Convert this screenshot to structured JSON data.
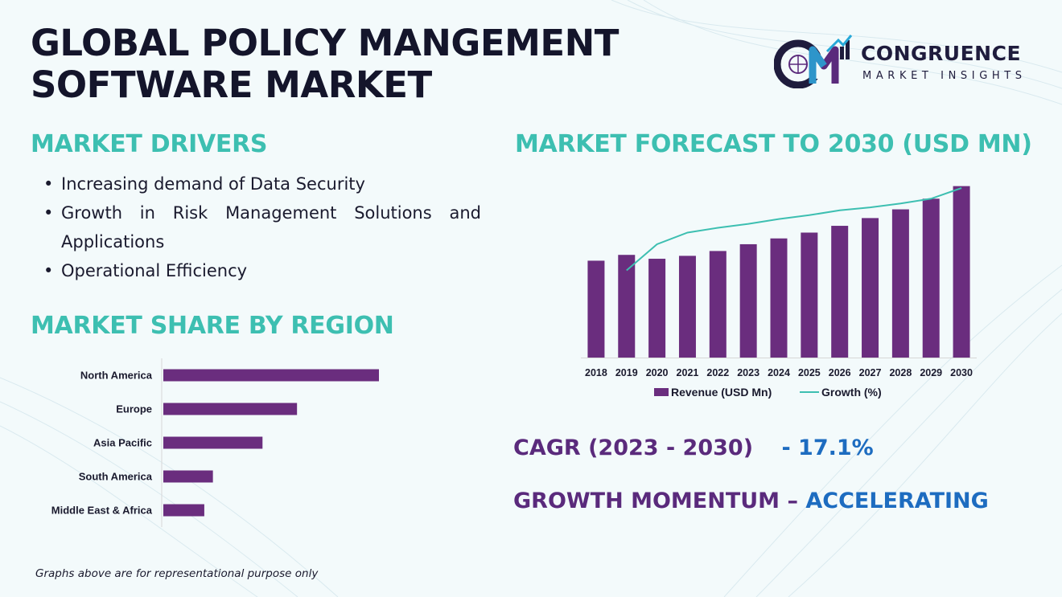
{
  "header": {
    "title_line1": "GLOBAL POLICY MANGEMENT",
    "title_line2": "SOFTWARE MARKET"
  },
  "logo": {
    "name": "CONGRUENCE",
    "tagline": "MARKET INSIGHTS"
  },
  "drivers": {
    "heading": "MARKET DRIVERS",
    "items": [
      "Increasing demand of Data Security",
      "Growth in Risk Management Solutions and Applications",
      "Operational Efficiency"
    ]
  },
  "region": {
    "heading": "MARKET SHARE BY REGION"
  },
  "forecast": {
    "heading": "MARKET FORECAST TO 2030 (USD MN)"
  },
  "cagr": {
    "label": "CAGR (2023 - 2030)",
    "value": "- 17.1%"
  },
  "momentum": {
    "label": "GROWTH MOMENTUM –",
    "value": "ACCELERATING"
  },
  "footnote": "Graphs above are for representational purpose only",
  "colors": {
    "bar": "#6a2d7e",
    "line": "#3dbfb1",
    "heading": "#3dbfb1",
    "purple_text": "#5a2a7c",
    "blue_text": "#1d6cc0"
  },
  "chart_data": [
    {
      "type": "bar",
      "orientation": "horizontal",
      "categories": [
        "North America",
        "Europe",
        "Asia Pacific",
        "South America",
        "Middle East & Africa"
      ],
      "values": [
        100,
        62,
        46,
        23,
        19
      ],
      "xlim": [
        0,
        100
      ]
    },
    {
      "type": "bar",
      "categories": [
        "2018",
        "2019",
        "2020",
        "2021",
        "2022",
        "2023",
        "2024",
        "2025",
        "2026",
        "2027",
        "2028",
        "2029",
        "2030"
      ],
      "series": [
        {
          "name": "Revenue (USD Mn)",
          "type": "bar",
          "values": [
            100,
            106,
            102,
            105,
            110,
            117,
            123,
            129,
            136,
            144,
            153,
            164,
            177
          ]
        },
        {
          "name": "Growth (%)",
          "type": "line",
          "values": [
            null,
            9,
            11.7,
            12.9,
            13.4,
            13.8,
            14.3,
            14.7,
            15.2,
            15.5,
            15.9,
            16.4,
            17.5
          ]
        }
      ],
      "legend": "bottom",
      "ylim": [
        0,
        180
      ],
      "y2lim": [
        0,
        18
      ]
    }
  ]
}
